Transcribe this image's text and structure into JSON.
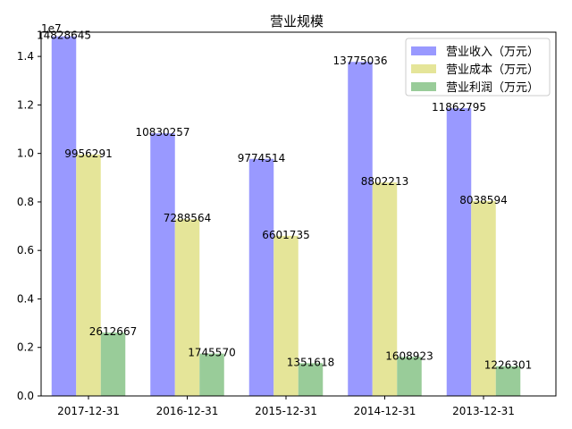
{
  "chart_data": {
    "type": "bar",
    "title": "营业规模",
    "xlabel": "",
    "ylabel": "",
    "y_offset_label": "1e7",
    "y_scale": 10000000,
    "ylim": [
      0,
      1.5
    ],
    "yticks": [
      0.0,
      0.2,
      0.4,
      0.6,
      0.8,
      1.0,
      1.2,
      1.4
    ],
    "ytick_labels": [
      "0.0",
      "0.2",
      "0.4",
      "0.6",
      "0.8",
      "1.0",
      "1.2",
      "1.4"
    ],
    "categories": [
      "2017-12-31",
      "2016-12-31",
      "2015-12-31",
      "2014-12-31",
      "2013-12-31"
    ],
    "legend_position": "upper-right",
    "grid": false,
    "series": [
      {
        "name": "营业收入（万元）",
        "color": "#9999ff",
        "values": [
          14828645,
          10830257,
          9774514,
          13775036,
          11862795
        ]
      },
      {
        "name": "营业成本（万元）",
        "color": "#e5e599",
        "values": [
          9956291,
          7288564,
          6601735,
          8802213,
          8038594
        ]
      },
      {
        "name": "营业利润（万元）",
        "color": "#99cc99",
        "values": [
          2612667,
          1745570,
          1351618,
          1608923,
          1226301
        ]
      }
    ]
  }
}
